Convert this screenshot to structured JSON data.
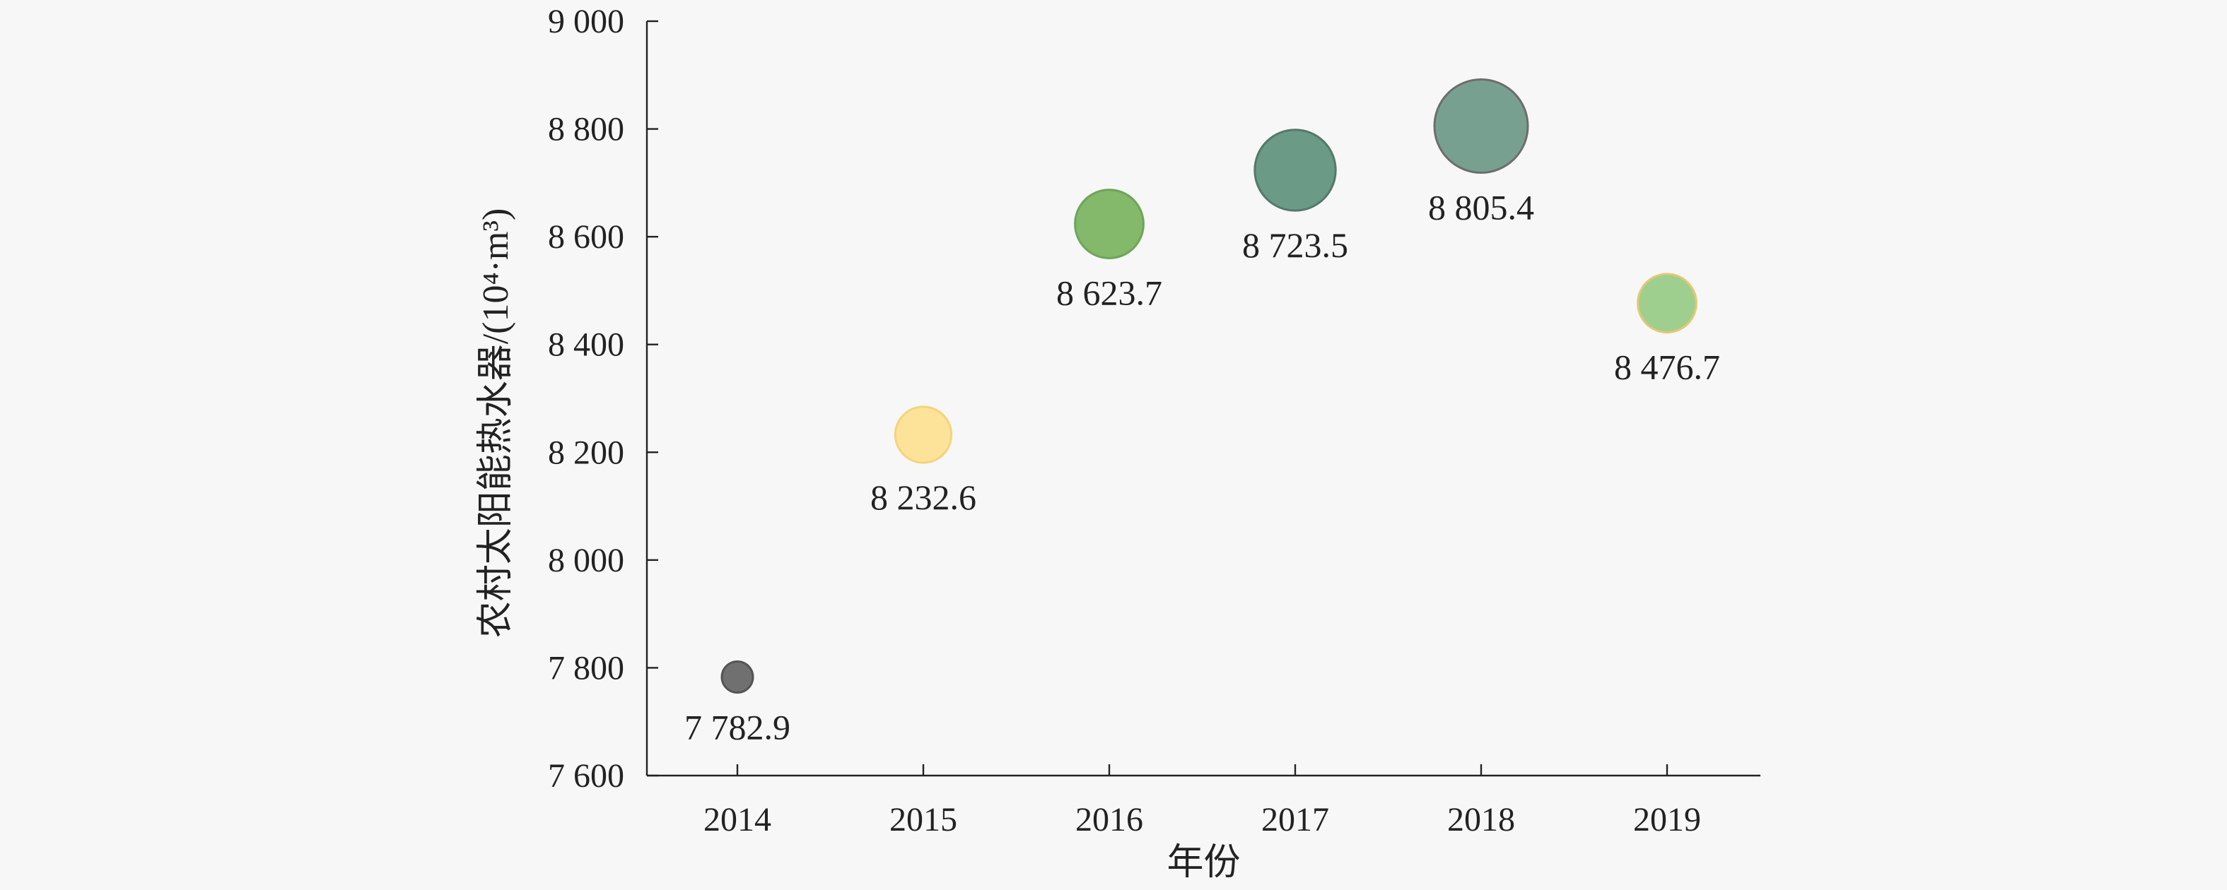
{
  "chart_data": {
    "type": "scatter",
    "subtype": "bubble",
    "title": "",
    "xlabel": "年份",
    "ylabel": "农村太阳能热水器/(10⁴·m³)",
    "categories": [
      "2014",
      "2015",
      "2016",
      "2017",
      "2018",
      "2019"
    ],
    "values": [
      7782.9,
      8232.6,
      8623.7,
      8723.5,
      8805.4,
      8476.7
    ],
    "value_labels": [
      "7 782.9",
      "8 232.6",
      "8 623.7",
      "8 723.5",
      "8 805.4",
      "8 476.7"
    ],
    "bubble_size_rank": [
      1,
      3,
      4,
      5,
      6,
      3.2
    ],
    "colors": [
      "#707070",
      "#fde39a",
      "#84b86a",
      "#6b9a86",
      "#78a090",
      "#9fcf8f"
    ],
    "stroke_colors": [
      "#555555",
      "#f5d37a",
      "#6ea55a",
      "#55786a",
      "#6d6d6d",
      "#e5c874"
    ],
    "ylim": [
      7600,
      9000
    ],
    "yticks": [
      7600,
      7800,
      8000,
      8200,
      8400,
      8600,
      8800,
      9000
    ],
    "ytick_labels": [
      "7 600",
      "7 800",
      "8 000",
      "8 200",
      "8 400",
      "8 600",
      "8 800",
      "9 000"
    ],
    "grid": false,
    "legend": "none"
  }
}
